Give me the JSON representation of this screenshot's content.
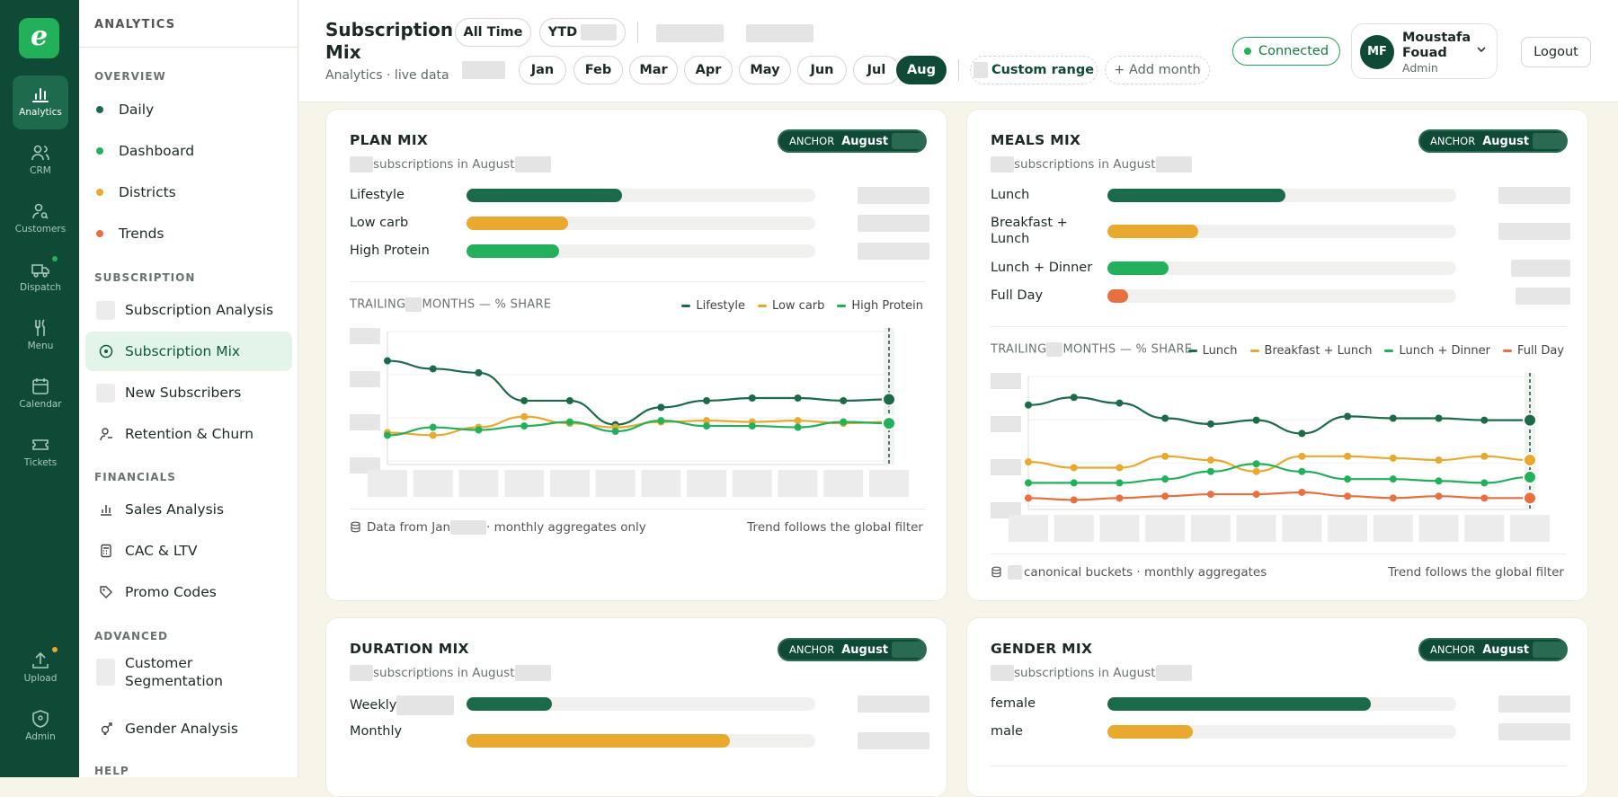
{
  "rail": {
    "logo": "e",
    "items": [
      {
        "label": "Analytics",
        "icon": "bar-chart-icon"
      },
      {
        "label": "CRM",
        "icon": "users-icon"
      },
      {
        "label": "Customers",
        "icon": "user-search-icon"
      },
      {
        "label": "Dispatch",
        "icon": "truck-icon"
      },
      {
        "label": "Menu",
        "icon": "fork-knife-icon"
      },
      {
        "label": "Calendar",
        "icon": "calendar-icon"
      },
      {
        "label": "Tickets",
        "icon": "ticket-icon"
      },
      {
        "label": "Upload",
        "icon": "upload-icon"
      },
      {
        "label": "Admin",
        "icon": "shield-icon"
      }
    ]
  },
  "nav": {
    "title": "ANALYTICS",
    "overview": {
      "label": "OVERVIEW",
      "items": [
        {
          "label": "Daily",
          "color": "#1b6b4a"
        },
        {
          "label": "Dashboard",
          "color": "#22b15a"
        },
        {
          "label": "Districts",
          "color": "#e8a92e"
        },
        {
          "label": "Trends",
          "color": "#e87040"
        }
      ]
    },
    "subscription": {
      "label": "SUBSCRIPTION",
      "items": [
        {
          "label": "Subscription Analysis"
        },
        {
          "label": "Subscription Mix"
        },
        {
          "label": "New Subscribers"
        },
        {
          "label": "Retention & Churn"
        }
      ]
    },
    "financials": {
      "label": "FINANCIALS",
      "items": [
        {
          "label": "Sales Analysis"
        },
        {
          "label": "CAC & LTV"
        },
        {
          "label": "Promo Codes"
        }
      ]
    },
    "advanced": {
      "label": "ADVANCED",
      "items": [
        {
          "label": "Customer Segmentation"
        },
        {
          "label": "Gender Analysis"
        }
      ]
    },
    "help": {
      "label": "HELP"
    }
  },
  "header": {
    "title": "Subscription Mix",
    "subtitle": "Analytics · live data",
    "filters": {
      "all_time": "All Time",
      "ytd": "YTD",
      "custom_range": "Custom range",
      "add_month": "+ Add month"
    },
    "months": [
      "Jan",
      "Feb",
      "Mar",
      "Apr",
      "May",
      "Jun",
      "Jul",
      "Aug"
    ],
    "selected_month": "Aug",
    "status": "Connected",
    "user": {
      "initials": "MF",
      "name": "Moustafa Fouad",
      "role": "Admin"
    },
    "logout": "Logout"
  },
  "colors": {
    "dark": "#1b6b4a",
    "orange": "#e8a92e",
    "green": "#22b15a",
    "red": "#e87040"
  },
  "cards": {
    "plan": {
      "title": "PLAN MIX",
      "anchor_label": "ANCHOR",
      "anchor_month": "August",
      "subtitle": "subscriptions in August",
      "bars": [
        {
          "label": "Lifestyle",
          "share": 0.445
        },
        {
          "label": "Low carb",
          "share": 0.29
        },
        {
          "label": "High Protein",
          "share": 0.265
        }
      ],
      "trail_prefix": "TRAILING",
      "trail_suffix": "MONTHS — % SHARE",
      "footer_left_a": "Data from Jan",
      "footer_left_b": "· monthly aggregates only",
      "footer_right": "Trend follows the global filter"
    },
    "meals": {
      "title": "MEALS MIX",
      "anchor_label": "ANCHOR",
      "anchor_month": "August",
      "subtitle": "subscriptions in August",
      "bars": [
        {
          "label": "Lunch",
          "share": 0.51
        },
        {
          "label": "Breakfast + Lunch",
          "share": 0.26
        },
        {
          "label": "Lunch + Dinner",
          "share": 0.175
        },
        {
          "label": "Full Day",
          "share": 0.06
        }
      ],
      "trail_prefix": "TRAILING",
      "trail_suffix": "MONTHS — % SHARE",
      "footer_left": "canonical buckets · monthly aggregates",
      "footer_right": "Trend follows the global filter"
    },
    "duration": {
      "title": "DURATION MIX",
      "anchor_label": "ANCHOR",
      "anchor_month": "August",
      "subtitle": "subscriptions in August",
      "bars": [
        {
          "label": "Weekly",
          "share": 0.245
        },
        {
          "label": "Monthly",
          "share": 0.755
        }
      ]
    },
    "gender": {
      "title": "GENDER MIX",
      "anchor_label": "ANCHOR",
      "anchor_month": "August",
      "subtitle": "subscriptions in August",
      "bars": [
        {
          "label": "female",
          "share": 0.755
        },
        {
          "label": "male",
          "share": 0.245
        }
      ]
    }
  },
  "chart_data": [
    {
      "type": "line",
      "title": "PLAN MIX — TRAILING MONTHS % SHARE",
      "series": [
        {
          "name": "Lifestyle",
          "values": [
            78,
            72,
            69,
            48,
            48,
            30,
            43,
            48,
            50,
            50,
            48,
            49
          ]
        },
        {
          "name": "Low carb",
          "values": [
            24,
            22,
            28,
            36,
            31,
            28,
            32,
            33,
            32,
            33,
            31,
            32
          ]
        },
        {
          "name": "High Protein",
          "values": [
            22,
            28,
            26,
            29,
            32,
            25,
            33,
            29,
            29,
            28,
            32,
            31
          ]
        }
      ],
      "ylim": [
        0,
        100
      ]
    },
    {
      "type": "line",
      "title": "MEALS MIX — TRAILING MONTHS % SHARE",
      "series": [
        {
          "name": "Lunch",
          "values": [
            55,
            59,
            56,
            48,
            45,
            47,
            40,
            49,
            48,
            48,
            47,
            47
          ]
        },
        {
          "name": "Breakfast + Lunch",
          "values": [
            25,
            22,
            22,
            28,
            26,
            20,
            28,
            28,
            27,
            26,
            28,
            26
          ]
        },
        {
          "name": "Lunch + Dinner",
          "values": [
            14,
            14,
            14,
            16,
            20,
            24,
            20,
            16,
            16,
            15,
            14,
            17
          ]
        },
        {
          "name": "Full Day",
          "values": [
            6,
            5,
            6,
            7,
            8,
            8,
            9,
            7,
            6,
            7,
            6,
            6
          ]
        }
      ],
      "ylim": [
        0,
        70
      ]
    }
  ]
}
